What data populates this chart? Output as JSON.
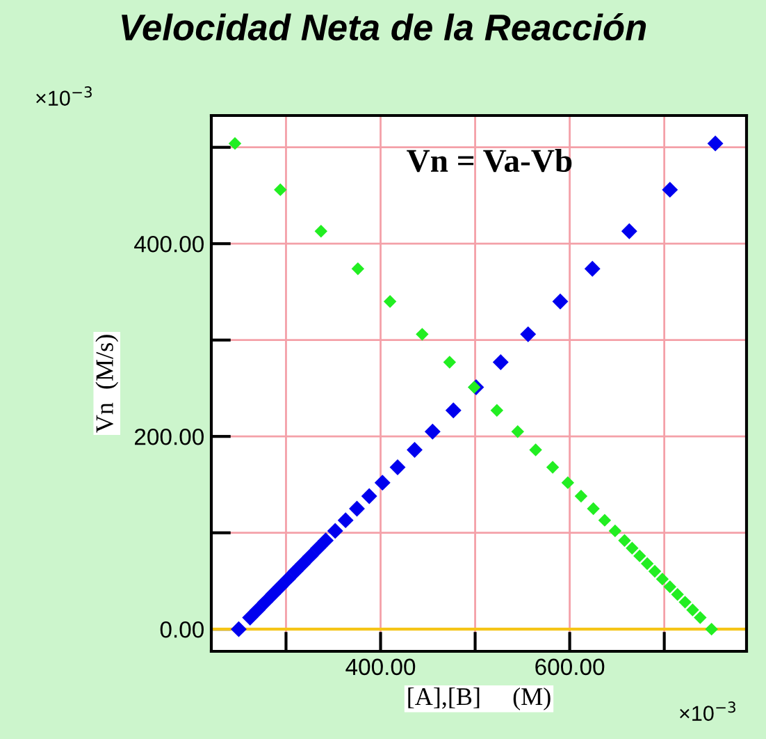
{
  "chart_data": {
    "type": "scatter",
    "title": "Velocidad Neta de la Reacción",
    "xlabel": "[A],[B]     (M)",
    "ylabel": "Vn  (M/s)",
    "annotations": [
      "Vn = Va-Vb",
      "×10$^{−3}$",
      "×10$^{−3}$"
    ],
    "series": [
      {
        "color": "#0000ee",
        "x": [
          754,
          706,
          663,
          624,
          590,
          556,
          527,
          501,
          477,
          455,
          436,
          418,
          402,
          388,
          375,
          363,
          352,
          342,
          334,
          326,
          318,
          310,
          302,
          294,
          286,
          278,
          270,
          262,
          250
        ],
        "values": [
          504,
          456,
          413,
          374,
          340,
          306,
          277,
          251,
          227,
          205,
          186,
          168,
          152,
          138,
          125,
          113,
          102,
          92,
          84,
          76,
          68,
          60,
          52,
          44,
          36,
          28,
          20,
          12,
          0
        ]
      },
      {
        "color": "#22ee22",
        "x": [
          246,
          294,
          337,
          376,
          410,
          444,
          473,
          499,
          523,
          545,
          564,
          582,
          598,
          612,
          625,
          637,
          648,
          658,
          666,
          674,
          682,
          690,
          698,
          706,
          714,
          722,
          730,
          738,
          750
        ],
        "values": [
          504,
          456,
          413,
          374,
          340,
          306,
          277,
          251,
          227,
          205,
          186,
          168,
          152,
          138,
          125,
          113,
          102,
          92,
          84,
          76,
          68,
          60,
          52,
          44,
          36,
          28,
          20,
          12,
          0
        ]
      }
    ],
    "xlim": [
      221,
      787
    ],
    "ylim": [
      -23,
      533
    ],
    "xticks": [
      {
        "value": 300,
        "label": null
      },
      {
        "value": 400,
        "label": "400.00"
      },
      {
        "value": 500,
        "label": null
      },
      {
        "value": 600,
        "label": "600.00"
      },
      {
        "value": 700,
        "label": null
      }
    ],
    "yticks": [
      {
        "value": 0,
        "label": "0.00"
      },
      {
        "value": 100,
        "label": null
      },
      {
        "value": 200,
        "label": "200.00"
      },
      {
        "value": 300,
        "label": null
      },
      {
        "value": 400,
        "label": "400.00"
      },
      {
        "value": 500,
        "label": null
      }
    ],
    "ref_lines": [
      {
        "axis": "y",
        "value": 0,
        "color": "#f5c518"
      }
    ],
    "grid": true,
    "marker": "diamond",
    "legend": false
  }
}
